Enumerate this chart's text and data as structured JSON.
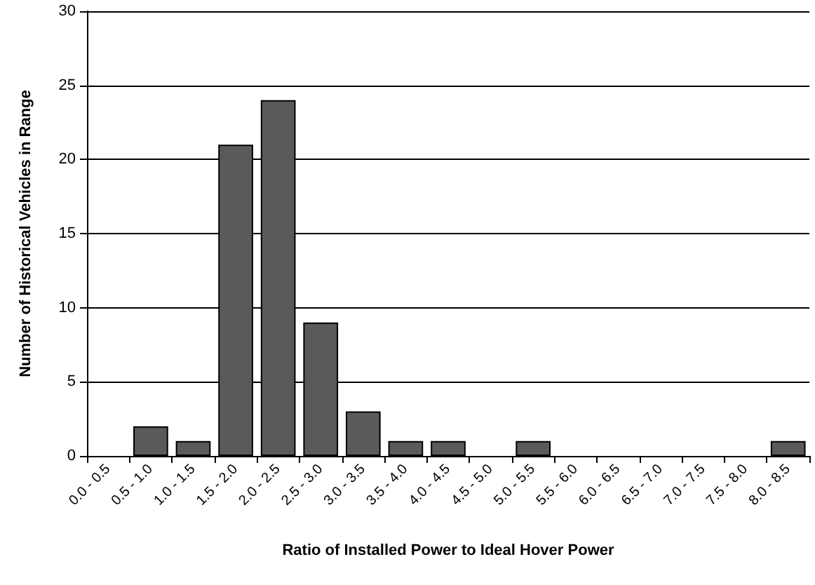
{
  "chart_data": {
    "type": "bar",
    "xlabel": "Ratio of Installed Power to Ideal Hover Power",
    "ylabel": "Number of Historical Vehicles in Range",
    "categories": [
      "0.0 - 0.5",
      "0.5 - 1.0",
      "1.0 - 1.5",
      "1.5 - 2.0",
      "2.0 - 2.5",
      "2.5 - 3.0",
      "3.0 - 3.5",
      "3.5 - 4.0",
      "4.0 - 4.5",
      "4.5 - 5.0",
      "5.0 - 5.5",
      "5.5 - 6.0",
      "6.0 - 6.5",
      "6.5 - 7.0",
      "7.0 - 7.5",
      "7.5 - 8.0",
      "8.0 - 8.5"
    ],
    "values": [
      0,
      2,
      1,
      21,
      24,
      9,
      3,
      1,
      1,
      0,
      1,
      0,
      0,
      0,
      0,
      0,
      1
    ],
    "color": "#5a5a5a",
    "ylim": [
      0,
      30
    ],
    "yticks": [
      0,
      5,
      10,
      15,
      20,
      25,
      30
    ],
    "grid": "y"
  }
}
